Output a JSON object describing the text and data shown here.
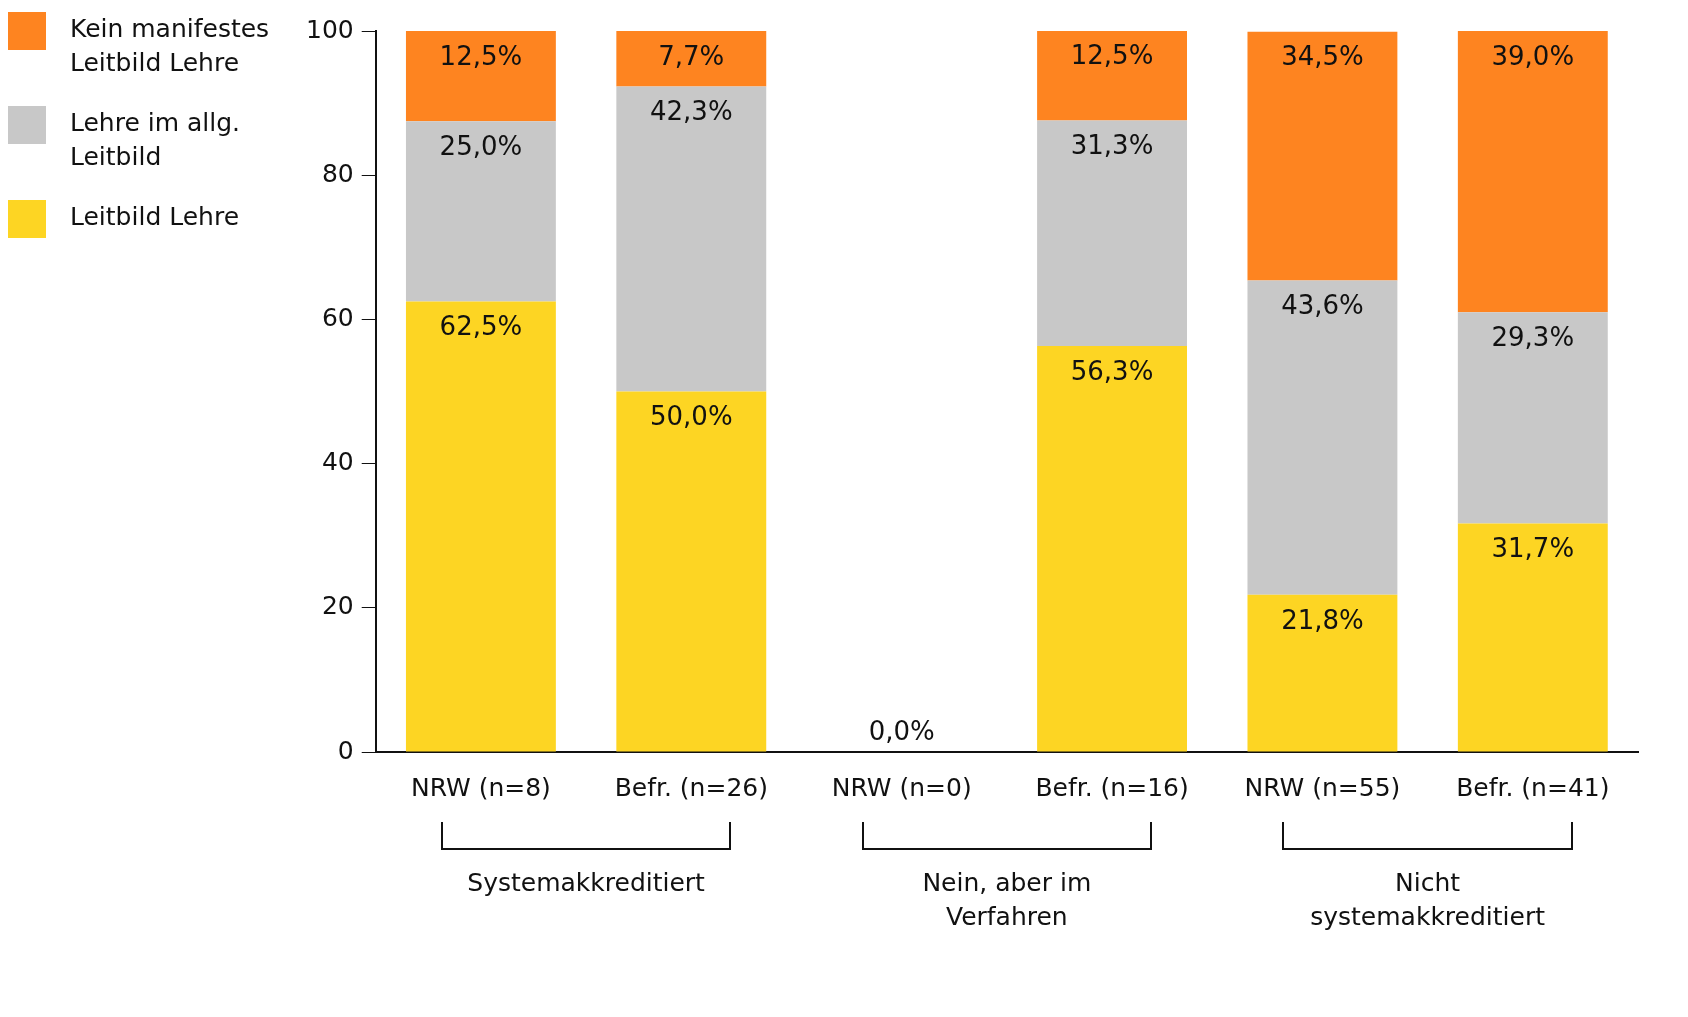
{
  "chart_data": {
    "type": "bar",
    "stacked": true,
    "legend": "left",
    "categories": [
      "NRW (n=8)",
      "Befr. (n=26)",
      "NRW (n=0)",
      "Befr. (n=16)",
      "NRW (n=55)",
      "Befr. (n=41)"
    ],
    "series": [
      {
        "name": "Leitbild Lehre",
        "color": "#fdd523",
        "values": [
          62.5,
          50.0,
          0.0,
          56.3,
          21.8,
          31.7
        ],
        "value_labels": [
          "62,5%",
          "50,0%",
          "0,0%",
          "56,3%",
          "21,8%",
          "31,7%"
        ]
      },
      {
        "name": "Lehre im allg. Leitbild",
        "color": "#c8c8c8",
        "values": [
          25.0,
          42.3,
          null,
          31.3,
          43.6,
          29.3
        ],
        "value_labels": [
          "25,0%",
          "42,3%",
          null,
          "31,3%",
          "43,6%",
          "29,3%"
        ]
      },
      {
        "name": "Kein manifestes Leitbild Lehre",
        "color": "#fe8420",
        "values": [
          12.5,
          7.7,
          null,
          12.5,
          34.5,
          39.0
        ],
        "value_labels": [
          "12,5%",
          "7,7%",
          null,
          "12,5%",
          "34,5%",
          "39,0%"
        ]
      }
    ],
    "ylim": [
      0,
      100
    ],
    "yticks": [
      0,
      20,
      40,
      60,
      80,
      100
    ],
    "grid": false,
    "annotations": [
      "Systemakkreditiert",
      "Nein, aber im Verfahren",
      "Nicht systemakkreditiert"
    ]
  }
}
